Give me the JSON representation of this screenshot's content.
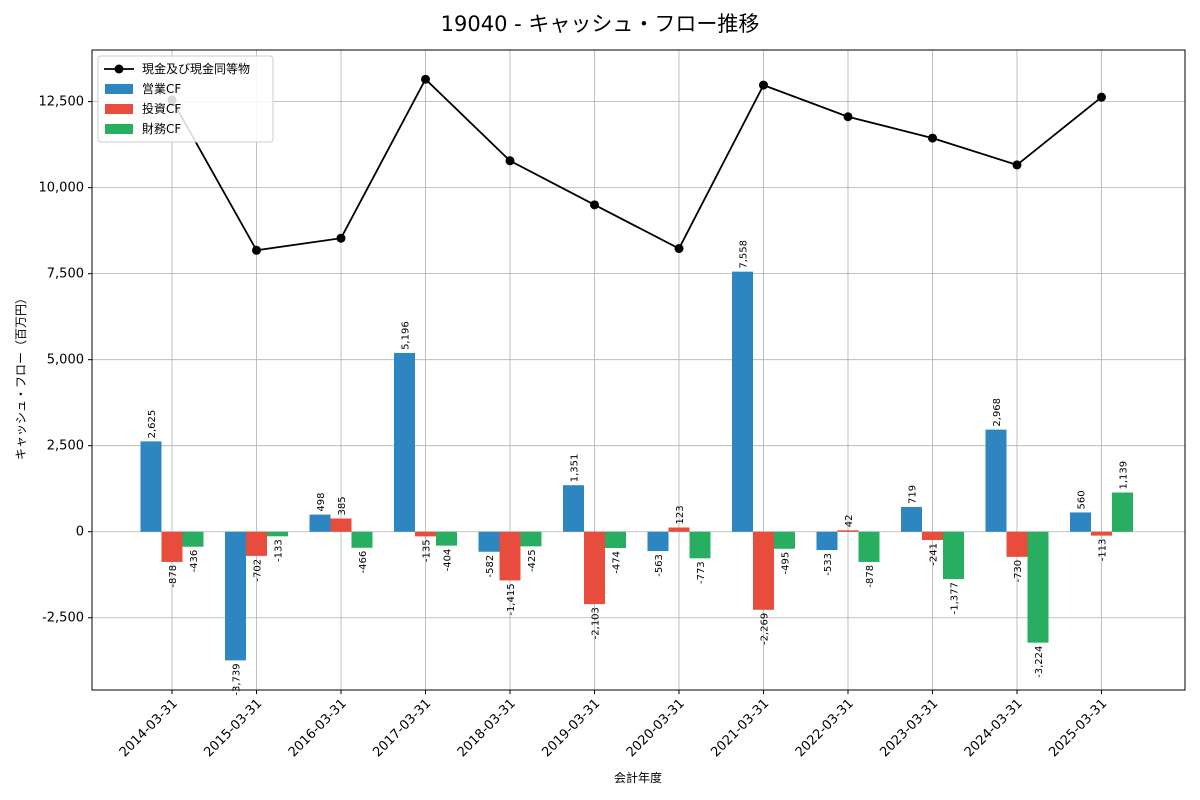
{
  "chart_data": {
    "type": "bar",
    "title": "19040 - キャッシュ・フロー推移",
    "xlabel": "会計年度",
    "ylabel": "キャッシュ・フロー（百万円）",
    "categories": [
      "2014-03-31",
      "2015-03-31",
      "2016-03-31",
      "2017-03-31",
      "2018-03-31",
      "2019-03-31",
      "2020-03-31",
      "2021-03-31",
      "2022-03-31",
      "2023-03-31",
      "2024-03-31",
      "2025-03-31"
    ],
    "series": [
      {
        "name": "営業CF",
        "kind": "bar",
        "color": "#2e86c1",
        "values": [
          2625,
          -3739,
          498,
          5196,
          -582,
          1351,
          -563,
          7558,
          -533,
          719,
          2968,
          560
        ],
        "labels": [
          "2,625",
          "-3,739",
          "498",
          "5,196",
          "-582",
          "1,351",
          "-563",
          "7,558",
          "-533",
          "719",
          "2,968",
          "560"
        ]
      },
      {
        "name": "投資CF",
        "kind": "bar",
        "color": "#e74c3c",
        "values": [
          -878,
          -702,
          385,
          -135,
          -1415,
          -2103,
          123,
          -2269,
          42,
          -241,
          -730,
          -113
        ],
        "labels": [
          "-878",
          "-702",
          "385",
          "-135",
          "-1,415",
          "-2,103",
          "123",
          "-2,269",
          "42",
          "-241",
          "-730",
          "-113"
        ]
      },
      {
        "name": "財務CF",
        "kind": "bar",
        "color": "#27ae60",
        "values": [
          -436,
          -133,
          -466,
          -404,
          -425,
          -474,
          -773,
          -495,
          -878,
          -1377,
          -3224,
          1139
        ],
        "labels": [
          "-436",
          "-133",
          "-466",
          "-404",
          "-425",
          "-474",
          "-773",
          "-495",
          "-878",
          "-1,377",
          "-3,224",
          "1,139"
        ]
      },
      {
        "name": "現金及び現金同等物",
        "kind": "line",
        "color": "#000000",
        "values": [
          12550,
          8180,
          8530,
          13150,
          10780,
          9500,
          8230,
          12980,
          12060,
          11440,
          10660,
          12630
        ]
      }
    ],
    "ylim": [
      -4600,
      14000
    ],
    "yticks": [
      -2500,
      0,
      2500,
      5000,
      7500,
      10000,
      12500
    ],
    "ytick_labels": [
      "-2,500",
      "0",
      "2,500",
      "5,000",
      "7,500",
      "10,000",
      "12,500"
    ],
    "grid": true,
    "legend": "top-left"
  }
}
